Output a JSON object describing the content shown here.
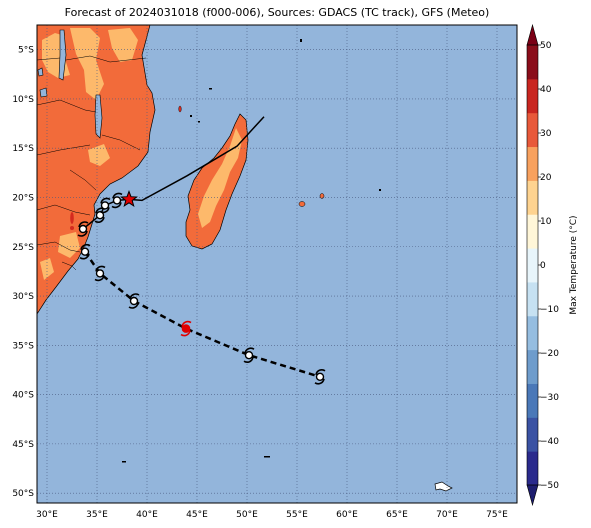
{
  "title": "Forecast of 2024031018 (f000-006), Sources: GDACS (TC track), GFS (Meteo)",
  "map": {
    "lon_range": [
      29,
      77
    ],
    "lat_range": [
      -51,
      -2.5
    ],
    "lon_ticks": [
      "30°E",
      "35°E",
      "40°E",
      "45°E",
      "50°E",
      "55°E",
      "60°E",
      "65°E",
      "70°E",
      "75°E"
    ],
    "lat_ticks": [
      "5°S",
      "10°S",
      "15°S",
      "20°S",
      "25°S",
      "30°S",
      "35°S",
      "40°S",
      "45°S",
      "50°S"
    ],
    "ocean_color": "#93b5db",
    "gridlines": true
  },
  "colorbar": {
    "label": "Max Temperature (°C)",
    "ticks": [
      "50",
      "40",
      "30",
      "20",
      "10",
      "0",
      "−10",
      "−20",
      "−30",
      "−40",
      "−50"
    ],
    "min": -50,
    "max": 50,
    "colors": [
      "#2a2a8c",
      "#3a52a3",
      "#4a78b8",
      "#6e9ccc",
      "#95bde0",
      "#c6e1f2",
      "#e8f5fb",
      "#fff6d8",
      "#fed390",
      "#f8a15e",
      "#e8593a",
      "#c92620",
      "#8a0d1a"
    ]
  },
  "legend_land_colors": {
    "hot": "#f26b3a",
    "warm": "#fdb96b"
  },
  "observed_track": {
    "style": "solid",
    "points": [
      [
        33.6,
        -23.2
      ],
      [
        35.3,
        -21.8
      ],
      [
        35.8,
        -20.8
      ],
      [
        37.0,
        -20.3
      ],
      [
        38.2,
        -20.2
      ],
      [
        39.5,
        -20.3
      ],
      [
        44.0,
        -17.8
      ],
      [
        49.0,
        -14.8
      ],
      [
        51.7,
        -11.8
      ]
    ]
  },
  "forecast_track": {
    "style": "dashed",
    "points": [
      [
        33.8,
        -25.5
      ],
      [
        35.3,
        -27.7
      ],
      [
        38.7,
        -30.5
      ],
      [
        43.9,
        -33.3
      ],
      [
        50.2,
        -36.0
      ],
      [
        57.3,
        -38.2
      ]
    ]
  },
  "current_position": {
    "lon": 38.2,
    "lat": -20.2,
    "marker": "star-icon"
  },
  "storm_markers": [
    {
      "lon": 33.6,
      "lat": -23.2,
      "status": "past"
    },
    {
      "lon": 35.3,
      "lat": -21.8,
      "status": "past"
    },
    {
      "lon": 35.8,
      "lat": -20.8,
      "status": "past"
    },
    {
      "lon": 37.0,
      "lat": -20.3,
      "status": "past"
    },
    {
      "lon": 33.8,
      "lat": -25.5,
      "status": "forecast"
    },
    {
      "lon": 35.3,
      "lat": -27.7,
      "status": "forecast"
    },
    {
      "lon": 38.7,
      "lat": -30.5,
      "status": "forecast"
    },
    {
      "lon": 43.9,
      "lat": -33.3,
      "status": "forecast-strong"
    },
    {
      "lon": 50.2,
      "lat": -36.0,
      "status": "forecast"
    },
    {
      "lon": 57.3,
      "lat": -38.2,
      "status": "forecast"
    }
  ]
}
